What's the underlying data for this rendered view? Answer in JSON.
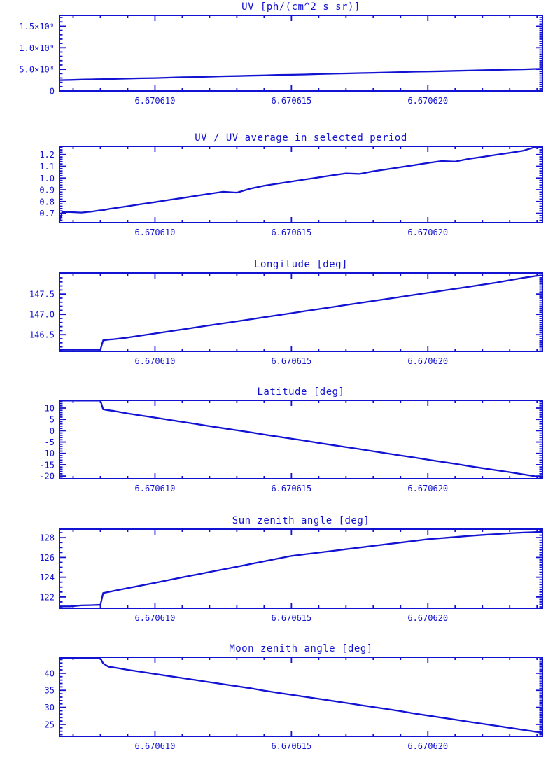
{
  "colors": {
    "line": "#1212d2",
    "axis": "#1212d2",
    "text": "#1212d2",
    "background": "#ffffff"
  },
  "chart_data": [
    {
      "type": "line",
      "title": "UV [ph/(cm^2 s sr)]",
      "x_range": [
        6.6706065,
        6.6706242
      ],
      "y_range": [
        0,
        1750000000.0
      ],
      "x_ticks": [
        6.67061,
        6.670615,
        6.67062
      ],
      "x_tick_labels": [
        "6.670610",
        "6.670615",
        "6.670620"
      ],
      "y_ticks": [
        0,
        500000000.0,
        1000000000.0,
        1500000000.0
      ],
      "y_tick_labels": [
        "0",
        "5.0×10⁸",
        "1.0×10⁹",
        "1.5×10⁹"
      ],
      "x": [
        6.6706065,
        6.6706069,
        6.6706073,
        6.6706077,
        6.6706079,
        6.670608,
        6.6706081,
        6.6706083,
        6.6706085,
        6.670609,
        6.6706095,
        6.67061,
        6.6706105,
        6.670611,
        6.6706115,
        6.670612,
        6.6706125,
        6.670613,
        6.6706135,
        6.670614,
        6.6706145,
        6.670615,
        6.6706155,
        6.670616,
        6.6706165,
        6.670617,
        6.6706175,
        6.670618,
        6.6706185,
        6.670619,
        6.6706195,
        6.67062,
        6.6706205,
        6.670621,
        6.6706215,
        6.670622,
        6.6706225,
        6.670623,
        6.6706235,
        6.670624,
        6.6706242
      ],
      "y": [
        250000000.0,
        255000000.0,
        263000000.0,
        267000000.0,
        270000000.0,
        271000000.0,
        272000000.0,
        276000000.0,
        279000000.0,
        287000000.0,
        293000000.0,
        298000000.0,
        308000000.0,
        317000000.0,
        322000000.0,
        331000000.0,
        341000000.0,
        345000000.0,
        354000000.0,
        360000000.0,
        369000000.0,
        375000000.0,
        381000000.0,
        390000000.0,
        399000000.0,
        405000000.0,
        414000000.0,
        420000000.0,
        428000000.0,
        436000000.0,
        445000000.0,
        451000000.0,
        457000000.0,
        465000000.0,
        472000000.0,
        480000000.0,
        486000000.0,
        495000000.0,
        501000000.0,
        510000000.0,
        512000000.0
      ]
    },
    {
      "type": "line",
      "title": "UV / UV average in selected period",
      "x_range": [
        6.6706065,
        6.6706242
      ],
      "y_range": [
        0.62,
        1.27
      ],
      "x_ticks": [
        6.67061,
        6.670615,
        6.67062
      ],
      "x_tick_labels": [
        "6.670610",
        "6.670615",
        "6.670620"
      ],
      "y_ticks": [
        0.7,
        0.8,
        0.9,
        1.0,
        1.1,
        1.2
      ],
      "y_tick_labels": [
        "0.7",
        "0.8",
        "0.9",
        "1.0",
        "1.1",
        "1.2"
      ],
      "x": [
        6.6706065,
        6.6706066,
        6.6706069,
        6.6706073,
        6.6706077,
        6.6706079,
        6.670608,
        6.6706081,
        6.6706083,
        6.6706085,
        6.670609,
        6.6706095,
        6.67061,
        6.6706105,
        6.670611,
        6.6706115,
        6.670612,
        6.6706125,
        6.670613,
        6.6706135,
        6.670614,
        6.6706145,
        6.670615,
        6.6706155,
        6.670616,
        6.6706165,
        6.670617,
        6.6706175,
        6.670618,
        6.6706185,
        6.670619,
        6.6706195,
        6.67062,
        6.6706205,
        6.670621,
        6.6706215,
        6.670622,
        6.6706225,
        6.670623,
        6.6706235,
        6.670624,
        6.6706242
      ],
      "y": [
        0.63,
        0.71,
        0.71,
        0.706,
        0.715,
        0.722,
        0.725,
        0.727,
        0.736,
        0.743,
        0.76,
        0.778,
        0.795,
        0.813,
        0.83,
        0.848,
        0.866,
        0.883,
        0.876,
        0.91,
        0.935,
        0.953,
        0.97,
        0.988,
        1.005,
        1.023,
        1.04,
        1.035,
        1.058,
        1.075,
        1.093,
        1.11,
        1.128,
        1.145,
        1.14,
        1.163,
        1.18,
        1.198,
        1.215,
        1.233,
        1.268,
        1.255
      ]
    },
    {
      "type": "line",
      "title": "Longitude [deg]",
      "x_range": [
        6.6706065,
        6.6706242
      ],
      "y_range": [
        146.09,
        148.02
      ],
      "x_ticks": [
        6.67061,
        6.670615,
        6.67062
      ],
      "x_tick_labels": [
        "6.670610",
        "6.670615",
        "6.670620"
      ],
      "y_ticks": [
        146.5,
        147.0,
        147.5
      ],
      "y_tick_labels": [
        "146.5",
        "147.0",
        "147.5"
      ],
      "x": [
        6.6706065,
        6.6706069,
        6.6706073,
        6.6706077,
        6.6706079,
        6.670608,
        6.6706081,
        6.6706083,
        6.6706085,
        6.670609,
        6.6706095,
        6.67061,
        6.6706105,
        6.670611,
        6.6706115,
        6.670612,
        6.6706125,
        6.670613,
        6.6706135,
        6.670614,
        6.6706145,
        6.670615,
        6.6706155,
        6.670616,
        6.6706165,
        6.670617,
        6.6706175,
        6.670618,
        6.6706185,
        6.670619,
        6.6706195,
        6.67062,
        6.6706205,
        6.670621,
        6.6706215,
        6.670622,
        6.6706225,
        6.670623,
        6.6706235,
        6.670624,
        6.6706242
      ],
      "y": [
        146.13,
        146.13,
        146.13,
        146.13,
        146.13,
        146.13,
        146.36,
        146.38,
        146.39,
        146.43,
        146.48,
        146.53,
        146.58,
        146.63,
        146.68,
        146.73,
        146.78,
        146.83,
        146.88,
        146.93,
        146.98,
        147.03,
        147.08,
        147.13,
        147.18,
        147.23,
        147.28,
        147.33,
        147.38,
        147.43,
        147.48,
        147.53,
        147.58,
        147.63,
        147.68,
        147.73,
        147.78,
        147.84,
        147.9,
        147.95,
        147.96
      ]
    },
    {
      "type": "line",
      "title": "Latitude [deg]",
      "x_range": [
        6.6706065,
        6.6706242
      ],
      "y_range": [
        -21.2,
        13.4
      ],
      "x_ticks": [
        6.67061,
        6.670615,
        6.67062
      ],
      "x_tick_labels": [
        "6.670610",
        "6.670615",
        "6.670620"
      ],
      "y_ticks": [
        -20,
        -15,
        -10,
        -5,
        0,
        5,
        10
      ],
      "y_tick_labels": [
        "-20",
        "-15",
        "-10",
        "-5",
        "0",
        "5",
        "10"
      ],
      "x": [
        6.6706065,
        6.6706069,
        6.6706073,
        6.6706077,
        6.6706079,
        6.670608,
        6.6706081,
        6.6706083,
        6.6706085,
        6.670609,
        6.6706095,
        6.67061,
        6.6706105,
        6.670611,
        6.6706115,
        6.670612,
        6.6706125,
        6.670613,
        6.6706135,
        6.670614,
        6.6706145,
        6.670615,
        6.6706155,
        6.670616,
        6.6706165,
        6.670617,
        6.6706175,
        6.670618,
        6.6706185,
        6.670619,
        6.6706195,
        6.67062,
        6.6706205,
        6.670621,
        6.6706215,
        6.670622,
        6.6706225,
        6.670623,
        6.6706235,
        6.670624,
        6.6706242
      ],
      "y": [
        13.3,
        13.3,
        13.3,
        13.3,
        13.3,
        13.3,
        9.4,
        9.0,
        8.7,
        7.6,
        6.7,
        5.8,
        4.8,
        3.9,
        3.0,
        2.0,
        1.1,
        0.2,
        -0.7,
        -1.7,
        -2.6,
        -3.5,
        -4.4,
        -5.4,
        -6.3,
        -7.2,
        -8.1,
        -9.1,
        -10.0,
        -10.9,
        -11.8,
        -12.8,
        -13.7,
        -14.6,
        -15.6,
        -16.5,
        -17.4,
        -18.3,
        -19.3,
        -20.2,
        -20.6
      ]
    },
    {
      "type": "line",
      "title": "Sun zenith angle [deg]",
      "x_range": [
        6.6706065,
        6.6706242
      ],
      "y_range": [
        120.86,
        128.86
      ],
      "x_ticks": [
        6.67061,
        6.670615,
        6.67062
      ],
      "x_tick_labels": [
        "6.670610",
        "6.670615",
        "6.670620"
      ],
      "y_ticks": [
        122,
        124,
        126,
        128
      ],
      "y_tick_labels": [
        "122",
        "124",
        "126",
        "128"
      ],
      "x": [
        6.6706065,
        6.6706069,
        6.6706073,
        6.6706077,
        6.6706079,
        6.670608,
        6.6706081,
        6.6706083,
        6.6706085,
        6.670609,
        6.6706095,
        6.67061,
        6.6706105,
        6.670611,
        6.6706115,
        6.670612,
        6.6706125,
        6.670613,
        6.6706135,
        6.670614,
        6.6706145,
        6.670615,
        6.6706155,
        6.670616,
        6.6706165,
        6.670617,
        6.6706175,
        6.670618,
        6.6706185,
        6.670619,
        6.6706195,
        6.67062,
        6.6706205,
        6.670621,
        6.6706215,
        6.670622,
        6.6706225,
        6.670623,
        6.6706235,
        6.670624,
        6.6706242
      ],
      "y": [
        121.05,
        121.05,
        121.15,
        121.18,
        121.2,
        121.2,
        122.4,
        122.51,
        122.62,
        122.89,
        123.16,
        123.43,
        123.71,
        123.98,
        124.25,
        124.52,
        124.79,
        125.06,
        125.33,
        125.6,
        125.88,
        126.15,
        126.32,
        126.49,
        126.66,
        126.83,
        127.0,
        127.17,
        127.34,
        127.5,
        127.67,
        127.84,
        127.95,
        128.06,
        128.17,
        128.27,
        128.36,
        128.44,
        128.51,
        128.56,
        128.58
      ]
    },
    {
      "type": "line",
      "title": "Moon zenith angle [deg]",
      "x_range": [
        6.6706065,
        6.6706242
      ],
      "y_range": [
        21.5,
        44.7
      ],
      "x_ticks": [
        6.67061,
        6.670615,
        6.67062
      ],
      "x_tick_labels": [
        "6.670610",
        "6.670615",
        "6.670620"
      ],
      "y_ticks": [
        25,
        30,
        35,
        40
      ],
      "y_tick_labels": [
        "25",
        "30",
        "35",
        "40"
      ],
      "x": [
        6.6706065,
        6.6706069,
        6.6706073,
        6.6706077,
        6.6706079,
        6.670608,
        6.6706081,
        6.6706083,
        6.6706085,
        6.670609,
        6.6706095,
        6.67061,
        6.6706105,
        6.670611,
        6.6706115,
        6.670612,
        6.6706125,
        6.670613,
        6.6706135,
        6.670614,
        6.6706145,
        6.670615,
        6.6706155,
        6.670616,
        6.6706165,
        6.670617,
        6.6706175,
        6.670618,
        6.6706185,
        6.670619,
        6.6706195,
        6.67062,
        6.6706205,
        6.670621,
        6.6706215,
        6.670622,
        6.6706225,
        6.670623,
        6.6706235,
        6.670624,
        6.6706242
      ],
      "y": [
        44.4,
        44.4,
        44.4,
        44.4,
        44.4,
        44.4,
        42.9,
        41.9,
        41.7,
        41.0,
        40.4,
        39.8,
        39.2,
        38.6,
        38.0,
        37.4,
        36.8,
        36.2,
        35.6,
        34.9,
        34.3,
        33.7,
        33.1,
        32.5,
        31.9,
        31.3,
        30.7,
        30.1,
        29.5,
        28.9,
        28.2,
        27.6,
        27.0,
        26.4,
        25.8,
        25.2,
        24.6,
        24.0,
        23.4,
        22.8,
        22.5
      ]
    }
  ]
}
